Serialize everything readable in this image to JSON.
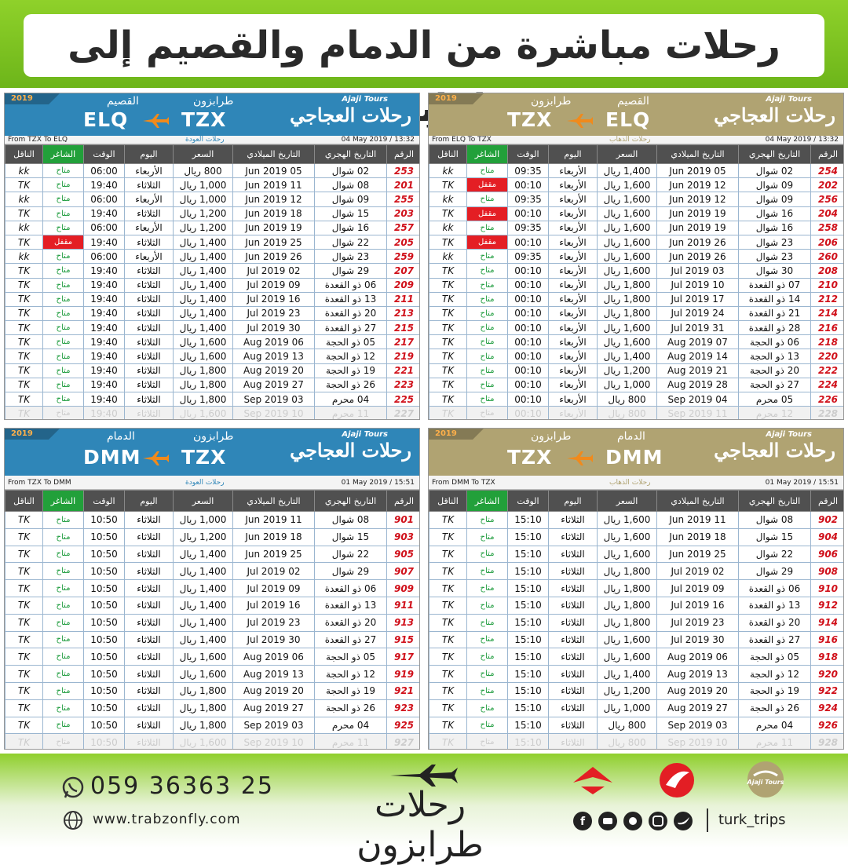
{
  "title": "رحلات مباشرة من الدمام والقصيم إلى طرابزون",
  "columns": [
    "الرقم",
    "التاريخ الهجري",
    "التاريخ الميلادي",
    "السعر",
    "اليوم",
    "الوقت",
    "الشاغر",
    "الناقل"
  ],
  "tables": [
    {
      "brand": "Ajaji Tours",
      "brand_ar": "رحلات العجاجي",
      "year": "2019",
      "city_left": "القصيم",
      "city_right": "طرابزون",
      "code_left": "ELQ",
      "code_right": "TZX",
      "route": "From TZX To ELQ",
      "direction": "رحلات العودة",
      "updated": "04 May 2019 / 13:32",
      "theme": "#2f86b8",
      "closed_rows": [
        5
      ],
      "rows": [
        [
          "253",
          "02 شوال",
          "05 Jun 2019",
          "800 ريال",
          "الأربعاء",
          "06:00",
          "متاح",
          "kk"
        ],
        [
          "201",
          "08 شوال",
          "11 Jun 2019",
          "1,000 ريال",
          "الثلاثاء",
          "19:40",
          "متاح",
          "TK"
        ],
        [
          "255",
          "09 شوال",
          "12 Jun 2019",
          "1,000 ريال",
          "الأربعاء",
          "06:00",
          "متاح",
          "kk"
        ],
        [
          "203",
          "15 شوال",
          "18 Jun 2019",
          "1,200 ريال",
          "الثلاثاء",
          "19:40",
          "متاح",
          "TK"
        ],
        [
          "257",
          "16 شوال",
          "19 Jun 2019",
          "1,200 ريال",
          "الأربعاء",
          "06:00",
          "متاح",
          "kk"
        ],
        [
          "205",
          "22 شوال",
          "25 Jun 2019",
          "1,400 ريال",
          "الثلاثاء",
          "19:40",
          "مقفل",
          "TK"
        ],
        [
          "259",
          "23 شوال",
          "26 Jun 2019",
          "1,400 ريال",
          "الأربعاء",
          "06:00",
          "متاح",
          "kk"
        ],
        [
          "207",
          "29 شوال",
          "02 Jul 2019",
          "1,400 ريال",
          "الثلاثاء",
          "19:40",
          "متاح",
          "TK"
        ],
        [
          "209",
          "06 ذو القعدة",
          "09 Jul 2019",
          "1,400 ريال",
          "الثلاثاء",
          "19:40",
          "متاح",
          "TK"
        ],
        [
          "211",
          "13 ذو القعدة",
          "16 Jul 2019",
          "1,400 ريال",
          "الثلاثاء",
          "19:40",
          "متاح",
          "TK"
        ],
        [
          "213",
          "20 ذو القعدة",
          "23 Jul 2019",
          "1,400 ريال",
          "الثلاثاء",
          "19:40",
          "متاح",
          "TK"
        ],
        [
          "215",
          "27 ذو القعدة",
          "30 Jul 2019",
          "1,400 ريال",
          "الثلاثاء",
          "19:40",
          "متاح",
          "TK"
        ],
        [
          "217",
          "05 ذو الحجة",
          "06 Aug 2019",
          "1,600 ريال",
          "الثلاثاء",
          "19:40",
          "متاح",
          "TK"
        ],
        [
          "219",
          "12 ذو الحجة",
          "13 Aug 2019",
          "1,600 ريال",
          "الثلاثاء",
          "19:40",
          "متاح",
          "TK"
        ],
        [
          "221",
          "19 ذو الحجة",
          "20 Aug 2019",
          "1,800 ريال",
          "الثلاثاء",
          "19:40",
          "متاح",
          "TK"
        ],
        [
          "223",
          "26 ذو الحجة",
          "27 Aug 2019",
          "1,800 ريال",
          "الثلاثاء",
          "19:40",
          "متاح",
          "TK"
        ],
        [
          "225",
          "04 محرم",
          "03 Sep 2019",
          "1,800 ريال",
          "الثلاثاء",
          "19:40",
          "متاح",
          "TK"
        ],
        [
          "227",
          "11 محرم",
          "10 Sep 2019",
          "1,600 ريال",
          "الثلاثاء",
          "19:40",
          "متاح",
          "TK"
        ]
      ]
    },
    {
      "brand": "Ajaji Tours",
      "brand_ar": "رحلات العجاجي",
      "year": "2019",
      "city_left": "طرابزون",
      "city_right": "القصيم",
      "code_left": "TZX",
      "code_right": "ELQ",
      "route": "From ELQ To TZX",
      "direction": "رحلات الذهاب",
      "updated": "04 May 2019 / 13:32",
      "theme": "#b0a372",
      "closed_rows": [
        1,
        3,
        5
      ],
      "rows": [
        [
          "254",
          "02 شوال",
          "05 Jun 2019",
          "1,400 ريال",
          "الأربعاء",
          "09:35",
          "متاح",
          "kk"
        ],
        [
          "202",
          "09 شوال",
          "12 Jun 2019",
          "1,600 ريال",
          "الأربعاء",
          "00:10",
          "مقفل",
          "TK"
        ],
        [
          "256",
          "09 شوال",
          "12 Jun 2019",
          "1,600 ريال",
          "الأربعاء",
          "09:35",
          "متاح",
          "kk"
        ],
        [
          "204",
          "16 شوال",
          "19 Jun 2019",
          "1,600 ريال",
          "الأربعاء",
          "00:10",
          "مقفل",
          "TK"
        ],
        [
          "258",
          "16 شوال",
          "19 Jun 2019",
          "1,600 ريال",
          "الأربعاء",
          "09:35",
          "متاح",
          "kk"
        ],
        [
          "206",
          "23 شوال",
          "26 Jun 2019",
          "1,600 ريال",
          "الأربعاء",
          "00:10",
          "مقفل",
          "TK"
        ],
        [
          "260",
          "23 شوال",
          "26 Jun 2019",
          "1,600 ريال",
          "الأربعاء",
          "09:35",
          "متاح",
          "kk"
        ],
        [
          "208",
          "30 شوال",
          "03 Jul 2019",
          "1,600 ريال",
          "الأربعاء",
          "00:10",
          "متاح",
          "TK"
        ],
        [
          "210",
          "07 ذو القعدة",
          "10 Jul 2019",
          "1,800 ريال",
          "الأربعاء",
          "00:10",
          "متاح",
          "TK"
        ],
        [
          "212",
          "14 ذو القعدة",
          "17 Jul 2019",
          "1,800 ريال",
          "الأربعاء",
          "00:10",
          "متاح",
          "TK"
        ],
        [
          "214",
          "21 ذو القعدة",
          "24 Jul 2019",
          "1,800 ريال",
          "الأربعاء",
          "00:10",
          "متاح",
          "TK"
        ],
        [
          "216",
          "28 ذو القعدة",
          "31 Jul 2019",
          "1,600 ريال",
          "الأربعاء",
          "00:10",
          "متاح",
          "TK"
        ],
        [
          "218",
          "06 ذو الحجة",
          "07 Aug 2019",
          "1,600 ريال",
          "الأربعاء",
          "00:10",
          "متاح",
          "TK"
        ],
        [
          "220",
          "13 ذو الحجة",
          "14 Aug 2019",
          "1,400 ريال",
          "الأربعاء",
          "00:10",
          "متاح",
          "TK"
        ],
        [
          "222",
          "20 ذو الحجة",
          "21 Aug 2019",
          "1,200 ريال",
          "الأربعاء",
          "00:10",
          "متاح",
          "TK"
        ],
        [
          "224",
          "27 ذو الحجة",
          "28 Aug 2019",
          "1,000 ريال",
          "الأربعاء",
          "00:10",
          "متاح",
          "TK"
        ],
        [
          "226",
          "05 محرم",
          "04 Sep 2019",
          "800 ريال",
          "الأربعاء",
          "00:10",
          "متاح",
          "TK"
        ],
        [
          "228",
          "12 محرم",
          "11 Sep 2019",
          "800 ريال",
          "الأربعاء",
          "00:10",
          "متاح",
          "TK"
        ]
      ]
    },
    {
      "brand": "Ajaji Tours",
      "brand_ar": "رحلات العجاجي",
      "year": "2019",
      "city_left": "الدمام",
      "city_right": "طرابزون",
      "code_left": "DMM",
      "code_right": "TZX",
      "route": "From TZX To DMM",
      "direction": "رحلات العودة",
      "updated": "01 May 2019 / 15:51",
      "theme": "#2f86b8",
      "closed_rows": [],
      "rows": [
        [
          "901",
          "08 شوال",
          "11 Jun 2019",
          "1,000 ريال",
          "الثلاثاء",
          "10:50",
          "متاح",
          "TK"
        ],
        [
          "903",
          "15 شوال",
          "18 Jun 2019",
          "1,200 ريال",
          "الثلاثاء",
          "10:50",
          "متاح",
          "TK"
        ],
        [
          "905",
          "22 شوال",
          "25 Jun 2019",
          "1,400 ريال",
          "الثلاثاء",
          "10:50",
          "متاح",
          "TK"
        ],
        [
          "907",
          "29 شوال",
          "02 Jul 2019",
          "1,400 ريال",
          "الثلاثاء",
          "10:50",
          "متاح",
          "TK"
        ],
        [
          "909",
          "06 ذو القعدة",
          "09 Jul 2019",
          "1,400 ريال",
          "الثلاثاء",
          "10:50",
          "متاح",
          "TK"
        ],
        [
          "911",
          "13 ذو القعدة",
          "16 Jul 2019",
          "1,400 ريال",
          "الثلاثاء",
          "10:50",
          "متاح",
          "TK"
        ],
        [
          "913",
          "20 ذو القعدة",
          "23 Jul 2019",
          "1,400 ريال",
          "الثلاثاء",
          "10:50",
          "متاح",
          "TK"
        ],
        [
          "915",
          "27 ذو القعدة",
          "30 Jul 2019",
          "1,400 ريال",
          "الثلاثاء",
          "10:50",
          "متاح",
          "TK"
        ],
        [
          "917",
          "05 ذو الحجة",
          "06 Aug 2019",
          "1,600 ريال",
          "الثلاثاء",
          "10:50",
          "متاح",
          "TK"
        ],
        [
          "919",
          "12 ذو الحجة",
          "13 Aug 2019",
          "1,600 ريال",
          "الثلاثاء",
          "10:50",
          "متاح",
          "TK"
        ],
        [
          "921",
          "19 ذو الحجة",
          "20 Aug 2019",
          "1,800 ريال",
          "الثلاثاء",
          "10:50",
          "متاح",
          "TK"
        ],
        [
          "923",
          "26 ذو الحجة",
          "27 Aug 2019",
          "1,800 ريال",
          "الثلاثاء",
          "10:50",
          "متاح",
          "TK"
        ],
        [
          "925",
          "04 محرم",
          "03 Sep 2019",
          "1,800 ريال",
          "الثلاثاء",
          "10:50",
          "متاح",
          "TK"
        ],
        [
          "927",
          "11 محرم",
          "10 Sep 2019",
          "1,600 ريال",
          "الثلاثاء",
          "10:50",
          "متاح",
          "TK"
        ]
      ]
    },
    {
      "brand": "Ajaji Tours",
      "brand_ar": "رحلات العجاجي",
      "year": "2019",
      "city_left": "طرابزون",
      "city_right": "الدمام",
      "code_left": "TZX",
      "code_right": "DMM",
      "route": "From DMM To TZX",
      "direction": "رحلات الذهاب",
      "updated": "01 May 2019 / 15:51",
      "theme": "#b0a372",
      "closed_rows": [],
      "rows": [
        [
          "902",
          "08 شوال",
          "11 Jun 2019",
          "1,600 ريال",
          "الثلاثاء",
          "15:10",
          "متاح",
          "TK"
        ],
        [
          "904",
          "15 شوال",
          "18 Jun 2019",
          "1,600 ريال",
          "الثلاثاء",
          "15:10",
          "متاح",
          "TK"
        ],
        [
          "906",
          "22 شوال",
          "25 Jun 2019",
          "1,600 ريال",
          "الثلاثاء",
          "15:10",
          "متاح",
          "TK"
        ],
        [
          "908",
          "29 شوال",
          "02 Jul 2019",
          "1,800 ريال",
          "الثلاثاء",
          "15:10",
          "متاح",
          "TK"
        ],
        [
          "910",
          "06 ذو القعدة",
          "09 Jul 2019",
          "1,800 ريال",
          "الثلاثاء",
          "15:10",
          "متاح",
          "TK"
        ],
        [
          "912",
          "13 ذو القعدة",
          "16 Jul 2019",
          "1,800 ريال",
          "الثلاثاء",
          "15:10",
          "متاح",
          "TK"
        ],
        [
          "914",
          "20 ذو القعدة",
          "23 Jul 2019",
          "1,800 ريال",
          "الثلاثاء",
          "15:10",
          "متاح",
          "TK"
        ],
        [
          "916",
          "27 ذو القعدة",
          "30 Jul 2019",
          "1,600 ريال",
          "الثلاثاء",
          "15:10",
          "متاح",
          "TK"
        ],
        [
          "918",
          "05 ذو الحجة",
          "06 Aug 2019",
          "1,600 ريال",
          "الثلاثاء",
          "15:10",
          "متاح",
          "TK"
        ],
        [
          "920",
          "12 ذو الحجة",
          "13 Aug 2019",
          "1,400 ريال",
          "الثلاثاء",
          "15:10",
          "متاح",
          "TK"
        ],
        [
          "922",
          "19 ذو الحجة",
          "20 Aug 2019",
          "1,200 ريال",
          "الثلاثاء",
          "15:10",
          "متاح",
          "TK"
        ],
        [
          "924",
          "26 ذو الحجة",
          "27 Aug 2019",
          "1,000 ريال",
          "الثلاثاء",
          "15:10",
          "متاح",
          "TK"
        ],
        [
          "926",
          "04 محرم",
          "03 Sep 2019",
          "800 ريال",
          "الثلاثاء",
          "15:10",
          "متاح",
          "TK"
        ],
        [
          "928",
          "11 محرم",
          "10 Sep 2019",
          "800 ريال",
          "الثلاثاء",
          "15:10",
          "متاح",
          "TK"
        ]
      ]
    }
  ],
  "footer": {
    "phone": "059 36363 25",
    "website": "www.trabzonfly.com",
    "brand": "رحلات طرابزون",
    "handle": "turk_trips",
    "logo": "Ajaji Tours"
  }
}
